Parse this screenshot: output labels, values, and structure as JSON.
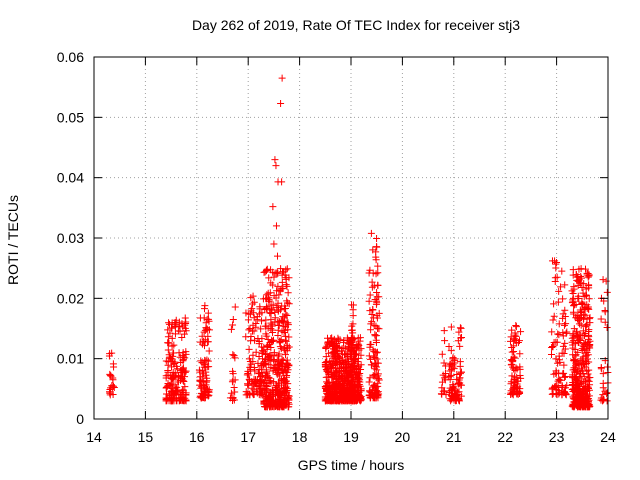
{
  "chart_data": {
    "type": "scatter",
    "title": "Day 262 of 2019, Rate Of TEC Index for receiver stj3",
    "xlabel": "GPS time / hours",
    "ylabel": "ROTI / TECUs",
    "xlim": [
      14,
      24
    ],
    "ylim": [
      0,
      0.06
    ],
    "x_ticks": [
      14,
      15,
      16,
      17,
      18,
      19,
      20,
      21,
      22,
      23,
      24
    ],
    "x_tick_labels": [
      "14",
      "15",
      "16",
      "17",
      "18",
      "19",
      "20",
      "21",
      "22",
      "23",
      "24"
    ],
    "y_ticks": [
      0,
      0.01,
      0.02,
      0.03,
      0.04,
      0.05,
      0.06
    ],
    "y_tick_labels": [
      "0",
      "0.01",
      "0.02",
      "0.03",
      "0.04",
      "0.05",
      "0.06"
    ],
    "grid": true,
    "marker": "+",
    "marker_color": "#ff0000",
    "clusters": [
      {
        "x": [
          14.3,
          14.4
        ],
        "y": [
          0.004,
          0.011
        ],
        "n": 22
      },
      {
        "x": [
          15.4,
          15.8
        ],
        "y": [
          0.003,
          0.017
        ],
        "n": 180
      },
      {
        "x": [
          16.05,
          16.25
        ],
        "y": [
          0.0035,
          0.02
        ],
        "n": 90
      },
      {
        "x": [
          16.65,
          16.75
        ],
        "y": [
          0.003,
          0.0235
        ],
        "n": 20
      },
      {
        "x": [
          16.95,
          17.3
        ],
        "y": [
          0.004,
          0.0205
        ],
        "n": 120
      },
      {
        "x": [
          17.3,
          17.8
        ],
        "y": [
          0.002,
          0.025
        ],
        "n": 400
      },
      {
        "x": [
          18.5,
          19.2
        ],
        "y": [
          0.003,
          0.0135
        ],
        "n": 650
      },
      {
        "x": [
          19.0,
          19.05
        ],
        "y": [
          0.012,
          0.0205
        ],
        "n": 15
      },
      {
        "x": [
          19.35,
          19.55
        ],
        "y": [
          0.0035,
          0.0315
        ],
        "n": 130
      },
      {
        "x": [
          20.75,
          20.85
        ],
        "y": [
          0.004,
          0.017
        ],
        "n": 16
      },
      {
        "x": [
          20.9,
          21.15
        ],
        "y": [
          0.003,
          0.0155
        ],
        "n": 85
      },
      {
        "x": [
          22.1,
          22.3
        ],
        "y": [
          0.004,
          0.0155
        ],
        "n": 80
      },
      {
        "x": [
          22.9,
          23.2
        ],
        "y": [
          0.004,
          0.0265
        ],
        "n": 90
      },
      {
        "x": [
          23.3,
          23.65
        ],
        "y": [
          0.002,
          0.025
        ],
        "n": 380
      },
      {
        "x": [
          23.85,
          24.0
        ],
        "y": [
          0.003,
          0.024
        ],
        "n": 30
      }
    ],
    "outliers": [
      {
        "x": 17.66,
        "y": 0.0565
      },
      {
        "x": 17.63,
        "y": 0.0523
      },
      {
        "x": 17.52,
        "y": 0.043
      },
      {
        "x": 17.54,
        "y": 0.042
      },
      {
        "x": 17.58,
        "y": 0.0393
      },
      {
        "x": 17.65,
        "y": 0.0393
      },
      {
        "x": 17.48,
        "y": 0.0352
      },
      {
        "x": 17.55,
        "y": 0.032
      },
      {
        "x": 17.5,
        "y": 0.029
      },
      {
        "x": 17.57,
        "y": 0.027
      }
    ]
  }
}
